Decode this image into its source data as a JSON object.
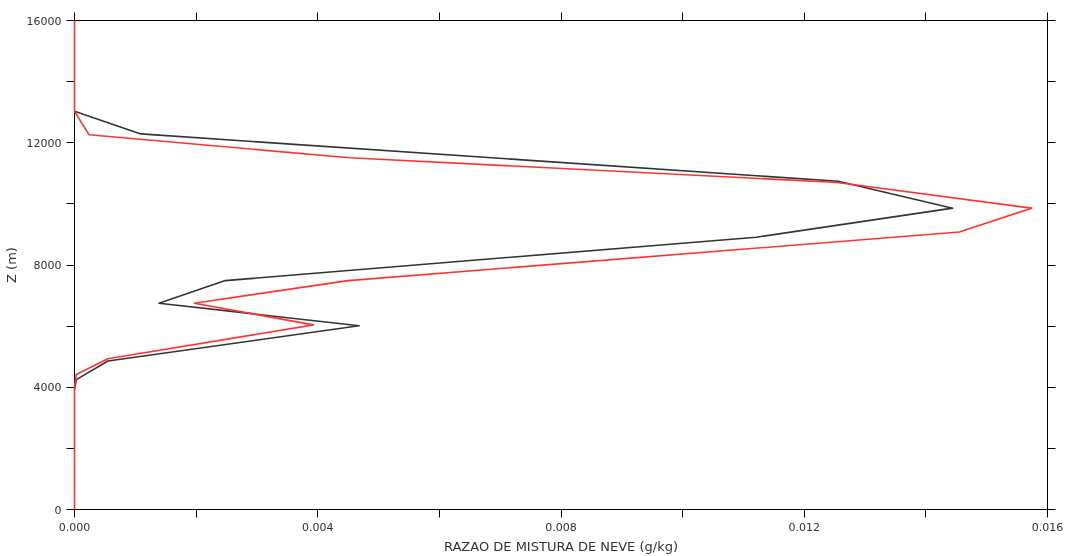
{
  "chart_data": {
    "type": "line",
    "xlabel": "RAZAO DE MISTURA DE NEVE (g/kg)",
    "ylabel": "Z (m)",
    "xlim": [
      0,
      0.016
    ],
    "ylim": [
      0,
      16000
    ],
    "xticks": [
      {
        "value": 0,
        "label": "0.000"
      },
      {
        "value": 0.002,
        "label": null
      },
      {
        "value": 0.004,
        "label": "0.004"
      },
      {
        "value": 0.006,
        "label": null
      },
      {
        "value": 0.008,
        "label": "0.008"
      },
      {
        "value": 0.01,
        "label": null
      },
      {
        "value": 0.012,
        "label": "0.012"
      },
      {
        "value": 0.014,
        "label": null
      },
      {
        "value": 0.016,
        "label": "0.016"
      }
    ],
    "yticks": [
      0,
      {
        "value": 2000,
        "label": null
      },
      4000,
      {
        "value": 6000,
        "label": null
      },
      8000,
      {
        "value": 10000,
        "label": null
      },
      12000,
      {
        "value": 14000,
        "label": null
      },
      16000
    ],
    "grid": false,
    "line_style": "solid",
    "marker": "none",
    "series": [
      {
        "color": "#333333",
        "x": [
          0,
          0.00109,
          0.01256,
          0.01444,
          0.01121,
          0.00248,
          0.00139,
          0.00468,
          0.00055,
          3e-05,
          0
        ],
        "values": [
          13030,
          12290,
          10740,
          9860,
          8910,
          7490,
          6750,
          6010,
          4860,
          4250,
          3920
        ]
      },
      {
        "color": "#ff3333",
        "x": [
          0,
          0,
          0.00024,
          0.00452,
          0.01254,
          0.01574,
          0.01455,
          0.0045,
          0.00197,
          0.00393,
          0.00055,
          3e-05,
          0,
          0
        ],
        "values": [
          16000,
          13030,
          12260,
          11510,
          10700,
          9860,
          9080,
          7490,
          6750,
          6040,
          4930,
          4420,
          4020,
          0
        ]
      }
    ]
  }
}
